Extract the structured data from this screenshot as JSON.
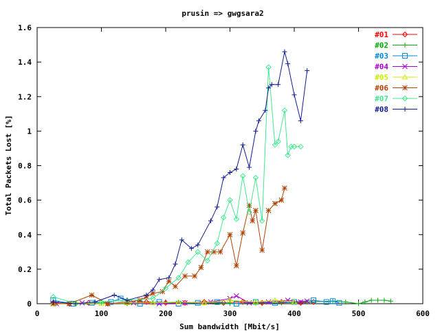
{
  "chart_data": {
    "type": "line",
    "title": "prusin => gwgsara2",
    "xlabel": "Sum bandwidth [Mbit/s]",
    "ylabel": "Total Packets Lost [%]",
    "xlim": [
      0,
      600
    ],
    "ylim": [
      0,
      1.6
    ],
    "xticks": [
      "0",
      "100",
      "200",
      "300",
      "400",
      "500",
      "600"
    ],
    "yticks": [
      "0",
      "0.2",
      "0.4",
      "0.6",
      "0.8",
      "1",
      "1.2",
      "1.4",
      "1.6"
    ],
    "grid": false,
    "legend_position": "top-right",
    "series": [
      {
        "name": "#01",
        "color": "#ff0000",
        "marker": "diamond",
        "x": [
          25,
          50,
          80,
          110,
          140,
          170,
          200,
          230,
          260,
          290,
          320,
          350,
          380,
          410,
          430
        ],
        "y": [
          0.005,
          0.0,
          0.005,
          0.0,
          0.005,
          0.01,
          0.005,
          0.005,
          0.01,
          0.005,
          0.01,
          0.005,
          0.01,
          0.005,
          0.01
        ]
      },
      {
        "name": "#02",
        "color": "#00aa00",
        "marker": "plus",
        "x": [
          30,
          60,
          100,
          140,
          180,
          220,
          260,
          300,
          340,
          380,
          420,
          460,
          480,
          500,
          510,
          520,
          530,
          540,
          550
        ],
        "y": [
          0.0,
          0.0,
          0.005,
          0.0,
          0.005,
          0.01,
          0.005,
          0.0,
          0.005,
          0.005,
          0.01,
          0.015,
          0.01,
          0.0,
          0.01,
          0.02,
          0.02,
          0.02,
          0.015
        ]
      },
      {
        "name": "#03",
        "color": "#0088dd",
        "marker": "square",
        "x": [
          25,
          55,
          85,
          115,
          130,
          160,
          190,
          220,
          250,
          280,
          310,
          340,
          370,
          400,
          430,
          450,
          460,
          470
        ],
        "y": [
          0.02,
          0.0,
          0.005,
          0.01,
          0.03,
          0.0,
          0.01,
          0.0,
          0.005,
          0.01,
          0.0,
          0.01,
          0.005,
          0.01,
          0.02,
          0.01,
          0.015,
          0.005
        ]
      },
      {
        "name": "#04",
        "color": "#aa00cc",
        "marker": "cross",
        "x": [
          30,
          70,
          110,
          150,
          190,
          230,
          270,
          300,
          310,
          330,
          360,
          390,
          410,
          420
        ],
        "y": [
          0.0,
          0.005,
          0.0,
          0.005,
          0.0,
          0.005,
          0.01,
          0.03,
          0.045,
          0.005,
          0.01,
          0.02,
          0.01,
          0.015
        ]
      },
      {
        "name": "#05",
        "color": "#c8f000",
        "marker": "triangle",
        "x": [
          25,
          60,
          100,
          140,
          180,
          220,
          260,
          300,
          340,
          370,
          400
        ],
        "y": [
          0.0,
          0.005,
          0.0,
          0.005,
          0.005,
          0.01,
          0.005,
          0.02,
          0.01,
          0.02,
          0.01
        ]
      },
      {
        "name": "#06",
        "color": "#b04000",
        "marker": "star",
        "x": [
          25,
          50,
          85,
          110,
          140,
          160,
          170,
          180,
          195,
          205,
          215,
          230,
          245,
          255,
          265,
          275,
          285,
          300,
          310,
          320,
          330,
          335,
          340,
          350,
          360,
          370,
          380,
          385
        ],
        "y": [
          0.0,
          0.0,
          0.05,
          0.0,
          0.01,
          0.02,
          0.04,
          0.06,
          0.07,
          0.13,
          0.1,
          0.16,
          0.16,
          0.21,
          0.3,
          0.3,
          0.3,
          0.4,
          0.22,
          0.41,
          0.57,
          0.48,
          0.54,
          0.31,
          0.54,
          0.58,
          0.6,
          0.67
        ]
      },
      {
        "name": "#07",
        "color": "#40e890",
        "marker": "diamond",
        "x": [
          25,
          60,
          100,
          140,
          180,
          200,
          220,
          235,
          250,
          265,
          280,
          290,
          300,
          310,
          320,
          330,
          340,
          350,
          360,
          370,
          375,
          385,
          390,
          395,
          400,
          410
        ],
        "y": [
          0.04,
          0.0,
          0.01,
          0.02,
          0.03,
          0.09,
          0.15,
          0.24,
          0.3,
          0.25,
          0.35,
          0.5,
          0.6,
          0.49,
          0.74,
          0.53,
          0.73,
          0.48,
          1.37,
          0.92,
          0.94,
          1.12,
          0.86,
          0.91,
          0.91,
          0.91
        ]
      },
      {
        "name": "#08",
        "color": "#101890",
        "marker": "plus",
        "x": [
          25,
          60,
          90,
          120,
          140,
          170,
          180,
          190,
          205,
          215,
          225,
          240,
          250,
          270,
          280,
          290,
          300,
          310,
          320,
          330,
          340,
          345,
          355,
          360,
          365,
          375,
          385,
          390,
          400,
          410,
          420
        ],
        "y": [
          0.01,
          0.0,
          0.01,
          0.05,
          0.02,
          0.05,
          0.08,
          0.14,
          0.15,
          0.23,
          0.37,
          0.32,
          0.34,
          0.48,
          0.56,
          0.73,
          0.76,
          0.78,
          0.92,
          0.79,
          1.0,
          1.06,
          1.12,
          1.25,
          1.27,
          1.27,
          1.46,
          1.39,
          1.21,
          1.06,
          1.35
        ]
      }
    ]
  }
}
